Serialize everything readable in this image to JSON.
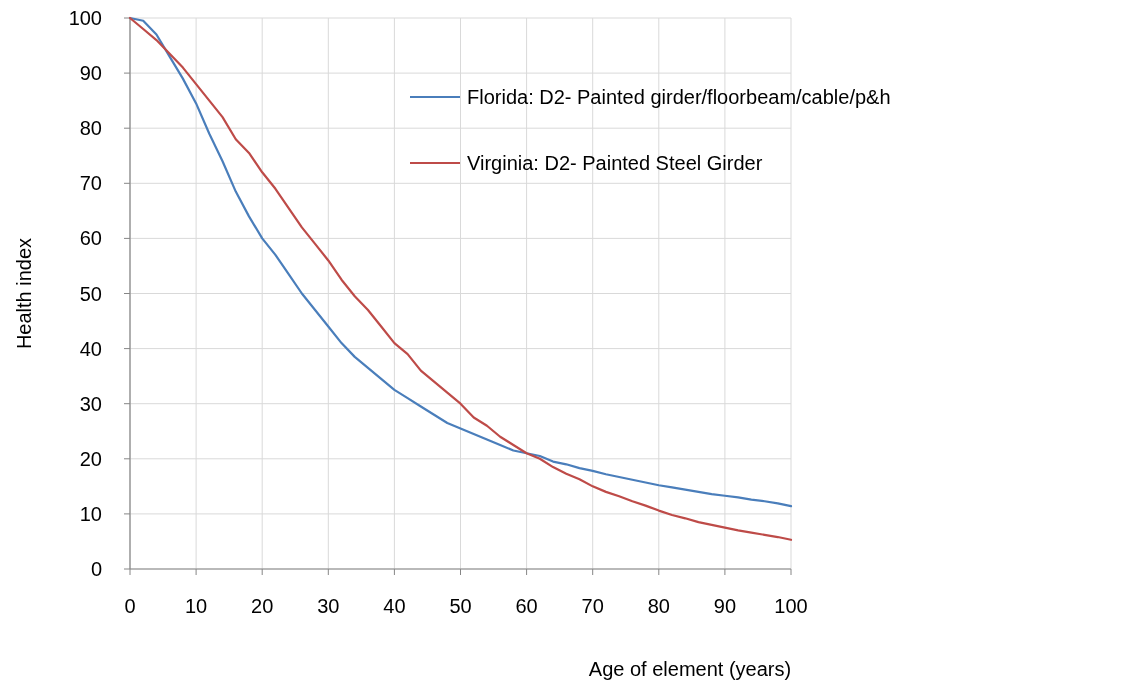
{
  "chart_data": {
    "type": "line",
    "xlabel": "Age of element (years)",
    "ylabel": "Health index",
    "xlim": [
      0,
      100
    ],
    "ylim": [
      0,
      100
    ],
    "xticks": [
      0,
      10,
      20,
      30,
      40,
      50,
      60,
      70,
      80,
      90,
      100
    ],
    "yticks": [
      0,
      10,
      20,
      30,
      40,
      50,
      60,
      70,
      80,
      90,
      100
    ],
    "grid": true,
    "legend": "top right",
    "marker": "none",
    "line_style": "solid",
    "x": [
      0,
      2,
      4,
      6,
      8,
      10,
      12,
      14,
      16,
      18,
      20,
      22,
      24,
      26,
      28,
      30,
      32,
      34,
      36,
      38,
      40,
      42,
      44,
      46,
      48,
      50,
      52,
      54,
      56,
      58,
      60,
      62,
      64,
      66,
      68,
      70,
      72,
      74,
      76,
      78,
      80,
      82,
      84,
      86,
      88,
      90,
      92,
      94,
      96,
      98,
      100
    ],
    "series": [
      {
        "name": "Florida: D2- Painted girder/floorbeam/cable/p&h",
        "color": "#4a7ebb",
        "values": [
          100,
          99.5,
          97,
          93,
          89,
          84.5,
          79,
          74,
          68.5,
          64,
          60,
          57,
          53.5,
          50,
          47,
          44,
          41,
          38.5,
          36.5,
          34.5,
          32.5,
          31,
          29.5,
          28,
          26.5,
          25.5,
          24.5,
          23.5,
          22.5,
          21.5,
          21,
          20.5,
          19.5,
          19,
          18.3,
          17.8,
          17.2,
          16.7,
          16.2,
          15.7,
          15.2,
          14.8,
          14.4,
          14,
          13.6,
          13.3,
          13,
          12.6,
          12.3,
          11.9,
          11.4
        ]
      },
      {
        "name": "Virginia: D2- Painted Steel Girder",
        "color": "#be4b48",
        "values": [
          100,
          98,
          96,
          93.5,
          91,
          88,
          85,
          82,
          78,
          75.5,
          72,
          69,
          65.5,
          62,
          59,
          56,
          52.5,
          49.5,
          47,
          44,
          41,
          39,
          36,
          34,
          32,
          30,
          27.5,
          26,
          24,
          22.5,
          21,
          20,
          18.5,
          17.3,
          16.3,
          15,
          14,
          13.2,
          12.3,
          11.5,
          10.6,
          9.8,
          9.2,
          8.5,
          8,
          7.5,
          7,
          6.6,
          6.2,
          5.8,
          5.3
        ]
      }
    ]
  }
}
